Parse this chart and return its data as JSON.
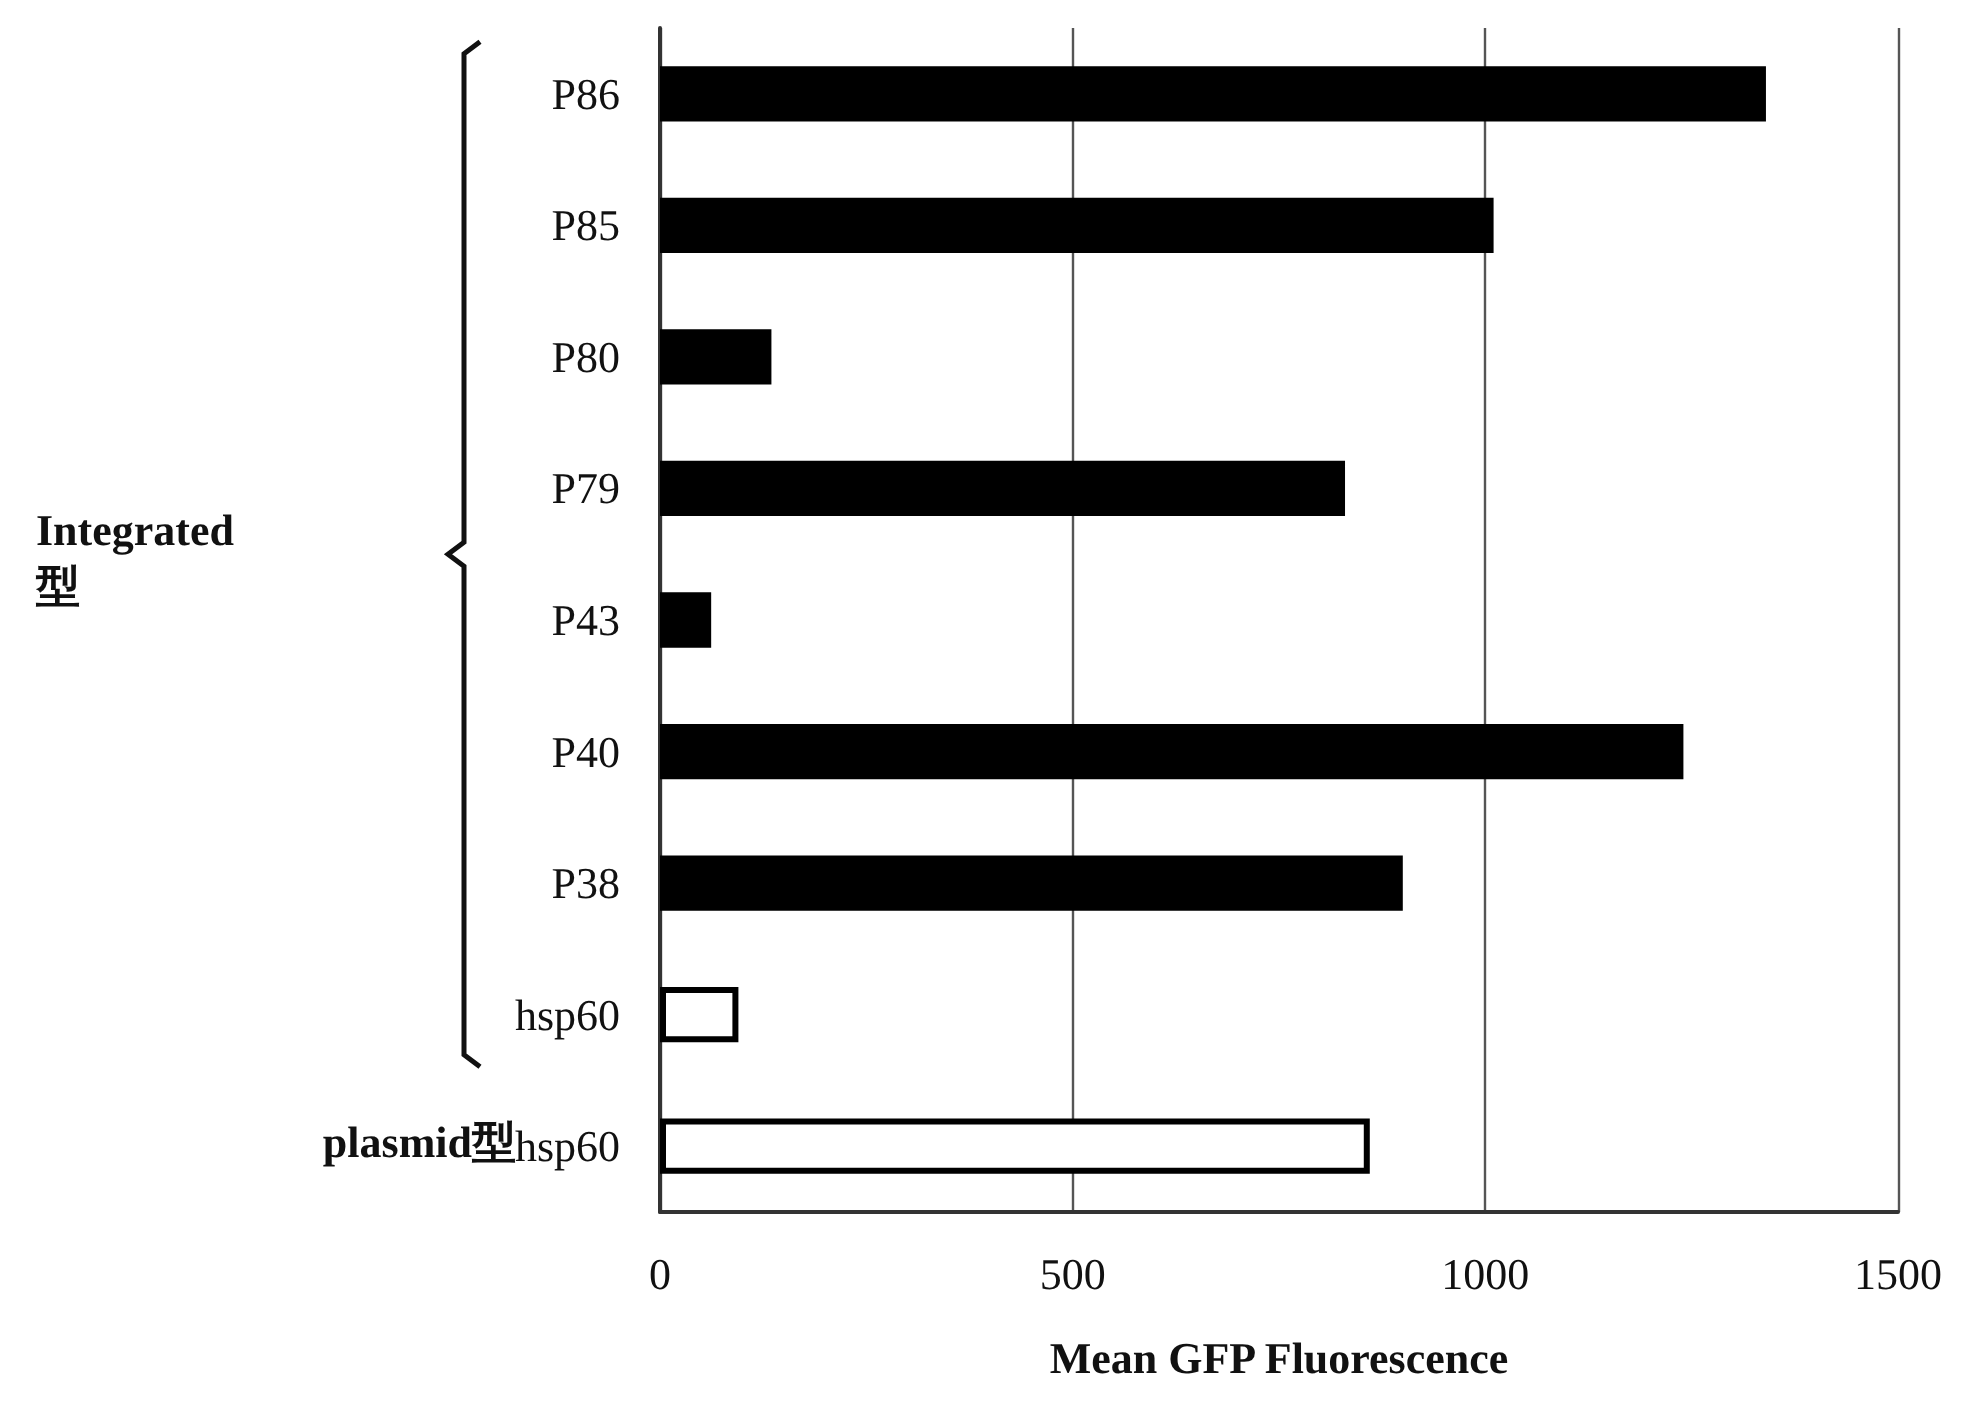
{
  "chart_data": {
    "type": "bar",
    "orientation": "horizontal",
    "xlabel": "Mean GFP Fluorescence",
    "categories": [
      "P86",
      "P85",
      "P80",
      "P79",
      "P43",
      "P40",
      "P38",
      "hsp60",
      "hsp60"
    ],
    "values": [
      1340,
      1010,
      135,
      830,
      62,
      1240,
      900,
      95,
      860
    ],
    "colors": [
      "#000000",
      "#000000",
      "#000000",
      "#000000",
      "#000000",
      "#000000",
      "#000000",
      "#ffffff",
      "#ffffff"
    ],
    "xlim": [
      0,
      1500
    ],
    "xticks": [
      0,
      500,
      1000,
      1500
    ],
    "grid": "x",
    "annotations": [
      "Integrated\n型",
      "plasmid型"
    ]
  }
}
